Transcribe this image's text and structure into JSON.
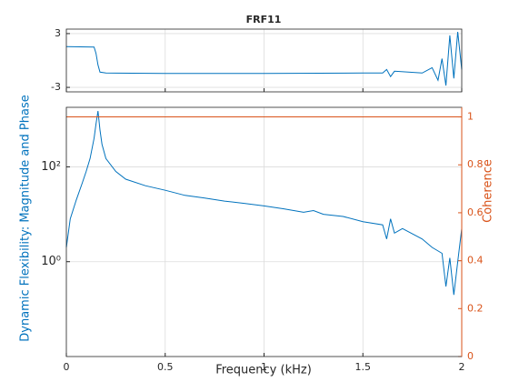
{
  "chart_data": [
    {
      "type": "line",
      "title": "FRF11",
      "xlim": [
        0,
        2
      ],
      "xticks": [
        0,
        0.5,
        1,
        1.5,
        2
      ],
      "ylim": [
        -3.5,
        3.5
      ],
      "yticks": [
        -3,
        3
      ],
      "grid": true,
      "series": [
        {
          "color": "#0072bd",
          "x": [
            0,
            0.14,
            0.15,
            0.16,
            0.17,
            0.2,
            0.5,
            1.0,
            1.5,
            1.6,
            1.62,
            1.64,
            1.66,
            1.8,
            1.85,
            1.88,
            1.9,
            1.92,
            1.94,
            1.96,
            1.98,
            2.0
          ],
          "values": [
            1.55,
            1.5,
            0.8,
            -0.5,
            -1.3,
            -1.4,
            -1.45,
            -1.45,
            -1.4,
            -1.4,
            -1.0,
            -1.8,
            -1.2,
            -1.4,
            -0.8,
            -2.2,
            0.2,
            -2.8,
            2.8,
            -2.0,
            3.2,
            -1
          ]
        }
      ]
    },
    {
      "type": "line",
      "xlabel": "Frequency (kHz)",
      "ylabel": "Dynamic Flexibility: Magnitude and Phase",
      "y2label": "Coherence",
      "xlim": [
        0,
        2
      ],
      "xticks": [
        0,
        0.5,
        1,
        1.5,
        2
      ],
      "ylim": [
        0.01,
        1800
      ],
      "yscale": "log",
      "yticks": [
        {
          "value": 1,
          "label": "10⁰"
        },
        {
          "value": 100,
          "label": "10²"
        }
      ],
      "y2lim": [
        0,
        1.04
      ],
      "y2ticks": [
        0,
        0.2,
        0.4,
        0.6,
        0.8,
        1
      ],
      "grid": true,
      "series": [
        {
          "color": "#0072bd",
          "x": [
            0,
            0.02,
            0.05,
            0.08,
            0.1,
            0.12,
            0.14,
            0.15,
            0.16,
            0.17,
            0.18,
            0.2,
            0.25,
            0.3,
            0.4,
            0.5,
            0.6,
            0.7,
            0.8,
            0.9,
            1.0,
            1.1,
            1.2,
            1.25,
            1.3,
            1.4,
            1.5,
            1.6,
            1.62,
            1.64,
            1.66,
            1.7,
            1.8,
            1.85,
            1.9,
            1.92,
            1.94,
            1.96,
            1.98,
            2.0
          ],
          "values": [
            2,
            8,
            20,
            45,
            80,
            150,
            400,
            800,
            1500,
            600,
            300,
            150,
            80,
            55,
            40,
            32,
            25,
            22,
            19,
            17,
            15,
            13,
            11,
            12,
            10,
            9,
            7,
            6,
            3,
            8,
            4,
            5,
            3,
            2,
            1.5,
            0.3,
            1.2,
            0.2,
            1,
            5
          ]
        },
        {
          "color": "#d95319",
          "axis": "y2",
          "x": [
            0,
            2
          ],
          "values": [
            1,
            1
          ]
        }
      ]
    }
  ]
}
